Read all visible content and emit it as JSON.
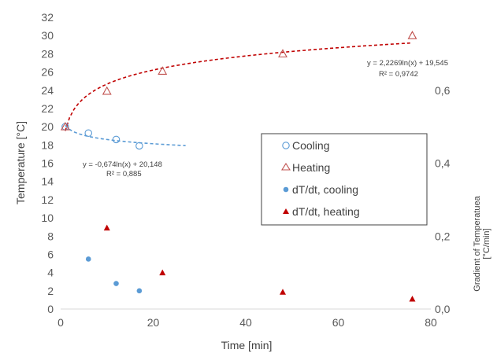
{
  "chart_data": {
    "type": "scatter",
    "xlabel": "Time [min]",
    "ylabel": "Temperature [°C]",
    "y2label_line1": "Gradient of Temperatuea",
    "y2label_line2": "[°C/min]",
    "xlim": [
      0,
      80
    ],
    "ylim": [
      0,
      32
    ],
    "y2lim": [
      0,
      0.8
    ],
    "x_ticks": [
      0,
      20,
      40,
      60,
      80
    ],
    "y_ticks": [
      0,
      2,
      4,
      6,
      8,
      10,
      12,
      14,
      16,
      18,
      20,
      22,
      24,
      26,
      28,
      30,
      32
    ],
    "y2_ticks": [
      {
        "value": 0,
        "label": "0,0"
      },
      {
        "value": 0.2,
        "label": "0,2"
      },
      {
        "value": 0.4,
        "label": "0,4"
      },
      {
        "value": 0.6,
        "label": "0,6"
      }
    ],
    "grid": false,
    "legend_position": "center-right",
    "series": [
      {
        "name": "Cooling",
        "axis": "left",
        "marker": "circle-open",
        "color": "#5b9bd5",
        "points": [
          [
            1,
            20
          ],
          [
            6,
            19.3
          ],
          [
            12,
            18.6
          ],
          [
            17,
            17.9
          ]
        ]
      },
      {
        "name": "Heating",
        "axis": "left",
        "marker": "triangle-open",
        "color": "#c0504d",
        "points": [
          [
            1,
            20
          ],
          [
            10,
            23.9
          ],
          [
            22,
            26.1
          ],
          [
            48,
            28
          ],
          [
            76,
            30
          ]
        ]
      },
      {
        "name": "dT/dt, cooling",
        "axis": "right",
        "marker": "circle-filled",
        "color": "#5b9bd5",
        "points": [
          [
            6,
            0.137
          ],
          [
            12,
            0.07
          ],
          [
            17,
            0.05
          ]
        ]
      },
      {
        "name": "dT/dt, heating",
        "axis": "right",
        "marker": "triangle-filled",
        "color": "#c00000",
        "points": [
          [
            10,
            0.223
          ],
          [
            22,
            0.1
          ],
          [
            48,
            0.047
          ],
          [
            76,
            0.028
          ]
        ]
      }
    ],
    "trendlines": [
      {
        "series": "Heating",
        "type": "log",
        "a": 2.2269,
        "b": 19.545,
        "x_range": [
          1,
          76
        ],
        "color": "#c00000",
        "equation": "y = 2,2269ln(x) + 19,545",
        "r2": "R² = 0,9742"
      },
      {
        "series": "Cooling",
        "type": "log",
        "a": -0.674,
        "b": 20.148,
        "x_range": [
          1,
          27
        ],
        "color": "#5b9bd5",
        "equation": "y = -0,674ln(x) + 20,148",
        "r2": "R² = 0,885"
      }
    ]
  }
}
